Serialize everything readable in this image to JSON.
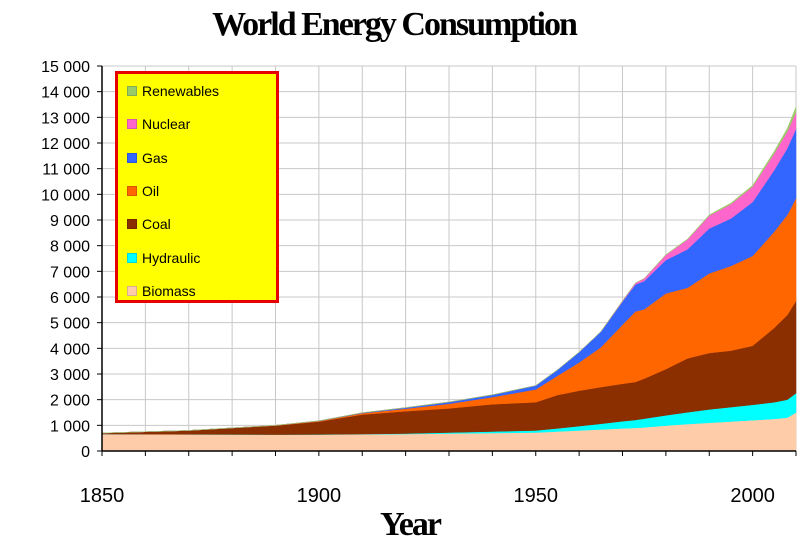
{
  "chart_data": {
    "type": "area",
    "title": "World Energy Consumption",
    "xlabel": "Year",
    "ylabel": "",
    "xlim": [
      1850,
      2010
    ],
    "ylim": [
      0,
      15000
    ],
    "x_ticks": [
      1850,
      1900,
      1950,
      2000
    ],
    "y_ticks": [
      "0",
      "1 000",
      "2 000",
      "3 000",
      "4 000",
      "5 000",
      "6 000",
      "7 000",
      "8 000",
      "9 000",
      "10 000",
      "11 000",
      "12 000",
      "13 000",
      "14 000",
      "15 000"
    ],
    "x": [
      1850,
      1870,
      1890,
      1900,
      1910,
      1920,
      1930,
      1940,
      1950,
      1955,
      1960,
      1965,
      1970,
      1973,
      1975,
      1980,
      1985,
      1990,
      1995,
      2000,
      2005,
      2008,
      2010
    ],
    "legend_position": "top-left",
    "series": [
      {
        "name": "Biomass",
        "color": "#ffccaa",
        "values": [
          660,
          650,
          640,
          640,
          650,
          660,
          680,
          700,
          720,
          760,
          800,
          840,
          880,
          900,
          920,
          990,
          1050,
          1100,
          1150,
          1200,
          1250,
          1300,
          1500
        ]
      },
      {
        "name": "Hydraulic",
        "color": "#00ffff",
        "values": [
          0,
          0,
          0,
          5,
          10,
          20,
          40,
          60,
          80,
          120,
          170,
          220,
          280,
          310,
          340,
          400,
          460,
          520,
          560,
          600,
          650,
          700,
          750
        ]
      },
      {
        "name": "Coal",
        "color": "#8b2e00",
        "values": [
          40,
          150,
          350,
          500,
          760,
          870,
          940,
          1060,
          1100,
          1300,
          1380,
          1430,
          1460,
          1480,
          1560,
          1800,
          2100,
          2200,
          2200,
          2300,
          2900,
          3300,
          3600
        ]
      },
      {
        "name": "Oil",
        "color": "#ff6600",
        "values": [
          0,
          0,
          10,
          20,
          50,
          100,
          180,
          280,
          500,
          750,
          1100,
          1550,
          2300,
          2750,
          2700,
          2950,
          2750,
          3100,
          3300,
          3500,
          3750,
          3900,
          4000
        ]
      },
      {
        "name": "Gas",
        "color": "#3366ff",
        "values": [
          0,
          0,
          0,
          10,
          20,
          40,
          70,
          90,
          150,
          230,
          400,
          600,
          900,
          1050,
          1100,
          1300,
          1500,
          1750,
          1850,
          2100,
          2400,
          2600,
          2700
        ]
      },
      {
        "name": "Nuclear",
        "color": "#ff66cc",
        "values": [
          0,
          0,
          0,
          0,
          0,
          0,
          0,
          0,
          0,
          0,
          5,
          10,
          30,
          60,
          100,
          200,
          380,
          500,
          560,
          600,
          650,
          650,
          650
        ]
      },
      {
        "name": "Renewables",
        "color": "#99cc66",
        "values": [
          0,
          0,
          0,
          0,
          0,
          0,
          0,
          0,
          0,
          0,
          0,
          0,
          0,
          0,
          0,
          10,
          20,
          30,
          40,
          50,
          80,
          120,
          200
        ]
      }
    ]
  }
}
